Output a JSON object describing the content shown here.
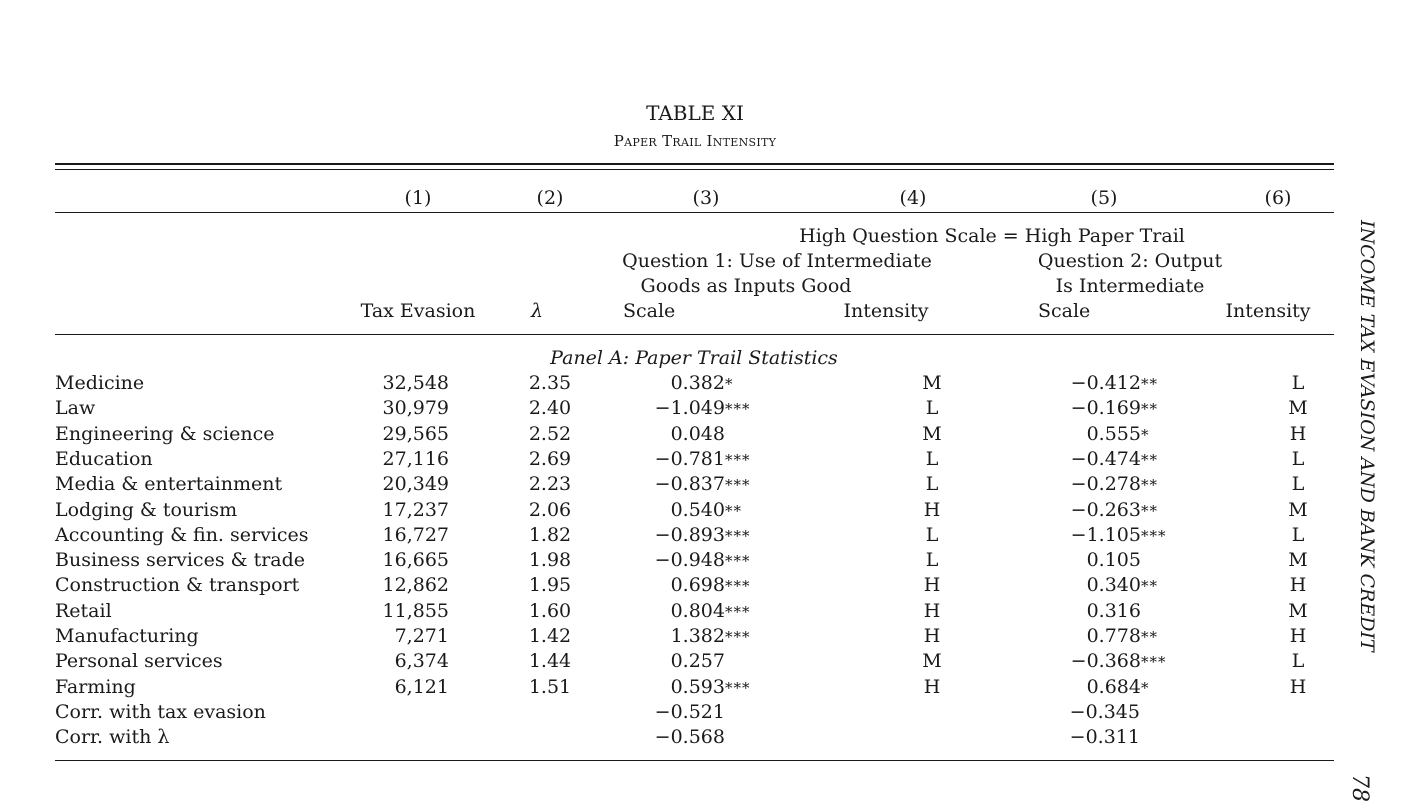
{
  "table": {
    "number": "TABLE XI",
    "title": "Paper Trail Intensity",
    "col_numbers": [
      "(1)",
      "(2)",
      "(3)",
      "(4)",
      "(5)",
      "(6)"
    ],
    "spanner": "High Question Scale = High Paper Trail",
    "q1_line1": "Question 1: Use of Intermediate",
    "q1_line2": "Goods as Inputs Good",
    "q2_line1": "Question 2: Output",
    "q2_line2": "Is Intermediate",
    "col_labels": [
      "Tax Evasion",
      "λ",
      "Scale",
      "Intensity",
      "Scale",
      "Intensity"
    ],
    "panel_label": "Panel A: Paper Trail Statistics",
    "rows": [
      {
        "label": "Medicine",
        "tax": "32,548",
        "lambda": "2.35",
        "q1": "0.382",
        "q1s": "*",
        "q1i": "M",
        "q2": "−0.412",
        "q2s": "**",
        "q2i": "L"
      },
      {
        "label": "Law",
        "tax": "30,979",
        "lambda": "2.40",
        "q1": "−1.049",
        "q1s": "***",
        "q1i": "L",
        "q2": "−0.169",
        "q2s": "**",
        "q2i": "M"
      },
      {
        "label": "Engineering & science",
        "tax": "29,565",
        "lambda": "2.52",
        "q1": "0.048",
        "q1s": "",
        "q1i": "M",
        "q2": "0.555",
        "q2s": "*",
        "q2i": "H"
      },
      {
        "label": "Education",
        "tax": "27,116",
        "lambda": "2.69",
        "q1": "−0.781",
        "q1s": "***",
        "q1i": "L",
        "q2": "−0.474",
        "q2s": "**",
        "q2i": "L"
      },
      {
        "label": "Media & entertainment",
        "tax": "20,349",
        "lambda": "2.23",
        "q1": "−0.837",
        "q1s": "***",
        "q1i": "L",
        "q2": "−0.278",
        "q2s": "**",
        "q2i": "L"
      },
      {
        "label": "Lodging & tourism",
        "tax": "17,237",
        "lambda": "2.06",
        "q1": "0.540",
        "q1s": "**",
        "q1i": "H",
        "q2": "−0.263",
        "q2s": "**",
        "q2i": "M"
      },
      {
        "label": "Accounting & fin. services",
        "tax": "16,727",
        "lambda": "1.82",
        "q1": "−0.893",
        "q1s": "***",
        "q1i": "L",
        "q2": "−1.105",
        "q2s": "***",
        "q2i": "L"
      },
      {
        "label": "Business services & trade",
        "tax": "16,665",
        "lambda": "1.98",
        "q1": "−0.948",
        "q1s": "***",
        "q1i": "L",
        "q2": "0.105",
        "q2s": "",
        "q2i": "M"
      },
      {
        "label": "Construction & transport",
        "tax": "12,862",
        "lambda": "1.95",
        "q1": "0.698",
        "q1s": "***",
        "q1i": "H",
        "q2": "0.340",
        "q2s": "**",
        "q2i": "H"
      },
      {
        "label": "Retail",
        "tax": "11,855",
        "lambda": "1.60",
        "q1": "0.804",
        "q1s": "***",
        "q1i": "H",
        "q2": "0.316",
        "q2s": "",
        "q2i": "M"
      },
      {
        "label": "Manufacturing",
        "tax": "7,271",
        "lambda": "1.42",
        "q1": "1.382",
        "q1s": "***",
        "q1i": "H",
        "q2": "0.778",
        "q2s": "**",
        "q2i": "H"
      },
      {
        "label": "Personal services",
        "tax": "6,374",
        "lambda": "1.44",
        "q1": "0.257",
        "q1s": "",
        "q1i": "M",
        "q2": "−0.368",
        "q2s": "***",
        "q2i": "L"
      },
      {
        "label": "Farming",
        "tax": "6,121",
        "lambda": "1.51",
        "q1": "0.593",
        "q1s": "***",
        "q1i": "H",
        "q2": "0.684",
        "q2s": "*",
        "q2i": "H"
      }
    ],
    "corr_rows": [
      {
        "label": "Corr. with tax evasion",
        "q1": "−0.521",
        "q2": "−0.345"
      },
      {
        "label": "Corr. with λ",
        "q1": "−0.568",
        "q2": "−0.311"
      }
    ]
  },
  "running_head": "INCOME TAX EVASION AND BANK CREDIT",
  "page_number": "78"
}
